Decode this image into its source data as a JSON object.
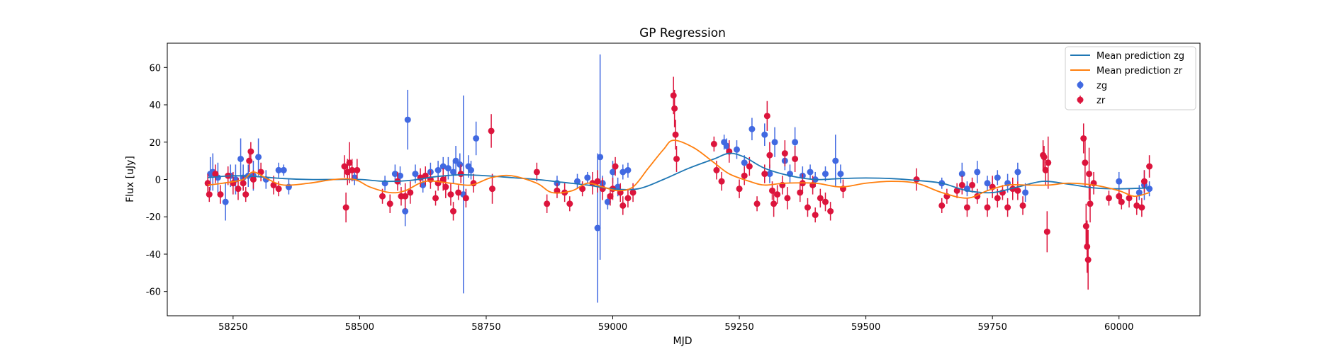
{
  "chart_data": {
    "type": "scatter",
    "title": "GP Regression",
    "xlabel": "MJD",
    "ylabel": "Flux [uJy]",
    "xlim": [
      58120,
      60160
    ],
    "ylim": [
      -73,
      73
    ],
    "xticks": [
      58250,
      58500,
      58750,
      59000,
      59250,
      59500,
      59750,
      60000
    ],
    "yticks": [
      -60,
      -40,
      -20,
      0,
      20,
      40,
      60
    ],
    "grid": false,
    "legend_position": "top-right",
    "colors": {
      "zg_points": "#4169e1",
      "zr_points": "#dc143c",
      "zg_line": "#1f77b4",
      "zr_line": "#ff7f0e"
    },
    "lines": [
      {
        "name": "Mean prediction zg",
        "x": [
          58200,
          58250,
          58300,
          58350,
          58400,
          58450,
          58500,
          58550,
          58600,
          58650,
          58700,
          58750,
          58800,
          58850,
          58900,
          58950,
          59000,
          59050,
          59100,
          59150,
          59200,
          59230,
          59260,
          59300,
          59350,
          59400,
          59450,
          59500,
          59550,
          59600,
          59650,
          59700,
          59750,
          59800,
          59850,
          59900,
          59950,
          60000,
          60060
        ],
        "y": [
          1,
          2,
          1.5,
          0.5,
          0,
          0,
          0,
          -1,
          -0.5,
          1.5,
          2.5,
          2,
          1,
          0,
          -1.5,
          -3,
          -5,
          -5,
          0,
          6,
          11,
          14,
          12,
          6,
          2,
          0,
          0.5,
          0.8,
          0.5,
          -0.5,
          -2,
          -6,
          -7,
          -4,
          -1,
          -2.5,
          -4.5,
          -5,
          -4.5
        ]
      },
      {
        "name": "Mean prediction zr",
        "x": [
          58200,
          58230,
          58270,
          58290,
          58320,
          58350,
          58400,
          58450,
          58490,
          58520,
          58560,
          58590,
          58630,
          58680,
          58720,
          58760,
          58800,
          58850,
          58880,
          58920,
          58950,
          58980,
          59010,
          59040,
          59070,
          59100,
          59120,
          59160,
          59200,
          59230,
          59270,
          59300,
          59340,
          59400,
          59450,
          59500,
          59550,
          59600,
          59650,
          59700,
          59740,
          59780,
          59820,
          59860,
          59900,
          59950,
          60000,
          60030,
          60060
        ],
        "y": [
          -3,
          -2,
          0,
          4,
          0,
          -3,
          -2,
          0,
          0,
          -4,
          -7,
          -6,
          -1,
          -2,
          -3,
          1,
          2,
          -2,
          -7,
          -6,
          -2,
          -4,
          -6,
          -4,
          6,
          16,
          21,
          17,
          9,
          3,
          -1,
          -3,
          -2,
          -2,
          -4,
          -2,
          -1,
          -2,
          -7,
          -10,
          -6,
          -3,
          -3,
          -3,
          -2,
          -3,
          -6,
          -9,
          -7
        ]
      }
    ],
    "series": [
      {
        "name": "zg",
        "points": [
          [
            58205,
            3,
            9
          ],
          [
            58210,
            4,
            10
          ],
          [
            58220,
            1,
            8
          ],
          [
            58235,
            -12,
            10
          ],
          [
            58245,
            2,
            6
          ],
          [
            58255,
            0,
            8
          ],
          [
            58265,
            11,
            11
          ],
          [
            58270,
            1,
            7
          ],
          [
            58280,
            2,
            6
          ],
          [
            58290,
            2,
            8
          ],
          [
            58300,
            12,
            10
          ],
          [
            58315,
            0,
            5
          ],
          [
            58340,
            5,
            4
          ],
          [
            58350,
            5,
            3
          ],
          [
            58360,
            -4,
            4
          ],
          [
            58490,
            1,
            4
          ],
          [
            58550,
            -2,
            4
          ],
          [
            58570,
            3,
            5
          ],
          [
            58580,
            2,
            5
          ],
          [
            58590,
            -17,
            8
          ],
          [
            58595,
            32,
            16
          ],
          [
            58610,
            3,
            5
          ],
          [
            58625,
            -3,
            4
          ],
          [
            58640,
            4,
            5
          ],
          [
            58655,
            5,
            5
          ],
          [
            58665,
            7,
            5
          ],
          [
            58675,
            6,
            6
          ],
          [
            58685,
            4,
            6
          ],
          [
            58690,
            10,
            8
          ],
          [
            58698,
            8,
            6
          ],
          [
            58705,
            -8,
            53
          ],
          [
            58715,
            7,
            6
          ],
          [
            58720,
            5,
            5
          ],
          [
            58730,
            22,
            9
          ],
          [
            58890,
            -2,
            4
          ],
          [
            58930,
            -1,
            4
          ],
          [
            58950,
            1,
            3
          ],
          [
            58970,
            -26,
            40
          ],
          [
            58975,
            12,
            55
          ],
          [
            58980,
            -2,
            4
          ],
          [
            58990,
            -12,
            4
          ],
          [
            59000,
            4,
            6
          ],
          [
            59010,
            -4,
            5
          ],
          [
            59020,
            4,
            4
          ],
          [
            59030,
            5,
            4
          ],
          [
            59220,
            20,
            4
          ],
          [
            59225,
            18,
            4
          ],
          [
            59245,
            16,
            5
          ],
          [
            59260,
            9,
            4
          ],
          [
            59275,
            27,
            6
          ],
          [
            59300,
            24,
            6
          ],
          [
            59310,
            3,
            5
          ],
          [
            59320,
            20,
            8
          ],
          [
            59340,
            10,
            5
          ],
          [
            59350,
            3,
            5
          ],
          [
            59360,
            20,
            8
          ],
          [
            59375,
            2,
            5
          ],
          [
            59390,
            4,
            4
          ],
          [
            59400,
            0,
            4
          ],
          [
            59420,
            3,
            4
          ],
          [
            59440,
            10,
            14
          ],
          [
            59450,
            3,
            5
          ],
          [
            59650,
            -2,
            3
          ],
          [
            59690,
            3,
            6
          ],
          [
            59700,
            -5,
            4
          ],
          [
            59720,
            4,
            6
          ],
          [
            59740,
            -2,
            4
          ],
          [
            59760,
            1,
            4
          ],
          [
            59780,
            -2,
            5
          ],
          [
            59800,
            4,
            5
          ],
          [
            59815,
            -7,
            5
          ],
          [
            60000,
            -1,
            5
          ],
          [
            60040,
            -7,
            4
          ],
          [
            60050,
            -3,
            8
          ],
          [
            60060,
            -5,
            4
          ]
        ]
      },
      {
        "name": "zr",
        "points": [
          [
            58200,
            -2,
            5
          ],
          [
            58203,
            -8,
            4
          ],
          [
            58215,
            3,
            5
          ],
          [
            58225,
            -8,
            5
          ],
          [
            58240,
            2,
            5
          ],
          [
            58250,
            -2,
            6
          ],
          [
            58260,
            -5,
            6
          ],
          [
            58270,
            -2,
            4
          ],
          [
            58275,
            -8,
            4
          ],
          [
            58282,
            10,
            6
          ],
          [
            58285,
            15,
            5
          ],
          [
            58290,
            0,
            5
          ],
          [
            58305,
            4,
            5
          ],
          [
            58330,
            -3,
            5
          ],
          [
            58340,
            -5,
            4
          ],
          [
            58470,
            7,
            6
          ],
          [
            58473,
            -15,
            8
          ],
          [
            58476,
            4,
            7
          ],
          [
            58480,
            9,
            11
          ],
          [
            58485,
            5,
            6
          ],
          [
            58495,
            5,
            6
          ],
          [
            58545,
            -9,
            4
          ],
          [
            58560,
            -13,
            5
          ],
          [
            58575,
            -1,
            5
          ],
          [
            58582,
            -9,
            5
          ],
          [
            58590,
            -9,
            7
          ],
          [
            58600,
            -7,
            6
          ],
          [
            58620,
            1,
            5
          ],
          [
            58630,
            2,
            5
          ],
          [
            58640,
            0,
            5
          ],
          [
            58650,
            -10,
            4
          ],
          [
            58655,
            -2,
            4
          ],
          [
            58665,
            0,
            6
          ],
          [
            58670,
            -4,
            6
          ],
          [
            58680,
            -8,
            6
          ],
          [
            58685,
            -17,
            5
          ],
          [
            58695,
            -7,
            4
          ],
          [
            58700,
            3,
            5
          ],
          [
            58710,
            -10,
            5
          ],
          [
            58725,
            -2,
            5
          ],
          [
            58760,
            26,
            9
          ],
          [
            58762,
            -5,
            8
          ],
          [
            58850,
            4,
            5
          ],
          [
            58870,
            -13,
            5
          ],
          [
            58890,
            -6,
            4
          ],
          [
            58905,
            -7,
            5
          ],
          [
            58915,
            -13,
            4
          ],
          [
            58940,
            -5,
            4
          ],
          [
            58960,
            -2,
            6
          ],
          [
            58970,
            -1,
            6
          ],
          [
            58980,
            -5,
            6
          ],
          [
            58995,
            -9,
            5
          ],
          [
            59000,
            -5,
            6
          ],
          [
            59005,
            7,
            5
          ],
          [
            59015,
            -7,
            5
          ],
          [
            59020,
            -14,
            5
          ],
          [
            59030,
            -10,
            5
          ],
          [
            59040,
            -7,
            5
          ],
          [
            59120,
            45,
            10
          ],
          [
            59122,
            38,
            10
          ],
          [
            59124,
            24,
            8
          ],
          [
            59126,
            11,
            7
          ],
          [
            59200,
            19,
            4
          ],
          [
            59205,
            5,
            5
          ],
          [
            59215,
            -1,
            5
          ],
          [
            59230,
            15,
            6
          ],
          [
            59250,
            -5,
            5
          ],
          [
            59260,
            2,
            5
          ],
          [
            59270,
            7,
            5
          ],
          [
            59285,
            -13,
            4
          ],
          [
            59300,
            3,
            5
          ],
          [
            59305,
            34,
            8
          ],
          [
            59310,
            13,
            7
          ],
          [
            59315,
            -6,
            5
          ],
          [
            59318,
            -13,
            7
          ],
          [
            59325,
            -8,
            5
          ],
          [
            59335,
            -3,
            5
          ],
          [
            59340,
            14,
            7
          ],
          [
            59345,
            -10,
            6
          ],
          [
            59360,
            11,
            7
          ],
          [
            59370,
            -7,
            5
          ],
          [
            59375,
            -2,
            5
          ],
          [
            59385,
            -15,
            5
          ],
          [
            59395,
            -3,
            5
          ],
          [
            59400,
            -19,
            4
          ],
          [
            59410,
            -10,
            5
          ],
          [
            59420,
            -12,
            5
          ],
          [
            59430,
            -17,
            5
          ],
          [
            59455,
            -5,
            5
          ],
          [
            59600,
            0,
            6
          ],
          [
            59650,
            -14,
            4
          ],
          [
            59660,
            -9,
            4
          ],
          [
            59680,
            -6,
            4
          ],
          [
            59690,
            -3,
            5
          ],
          [
            59700,
            -15,
            5
          ],
          [
            59710,
            -3,
            4
          ],
          [
            59720,
            -9,
            4
          ],
          [
            59740,
            -15,
            5
          ],
          [
            59750,
            -4,
            6
          ],
          [
            59760,
            -10,
            5
          ],
          [
            59770,
            -7,
            4
          ],
          [
            59780,
            -15,
            5
          ],
          [
            59790,
            -5,
            6
          ],
          [
            59800,
            -6,
            5
          ],
          [
            59810,
            -14,
            5
          ],
          [
            59850,
            13,
            8
          ],
          [
            59852,
            12,
            6
          ],
          [
            59855,
            5,
            8
          ],
          [
            59858,
            -28,
            11
          ],
          [
            59860,
            9,
            14
          ],
          [
            59930,
            22,
            8
          ],
          [
            59933,
            9,
            13
          ],
          [
            59935,
            -25,
            12
          ],
          [
            59937,
            -36,
            14
          ],
          [
            59939,
            -43,
            16
          ],
          [
            59941,
            3,
            14
          ],
          [
            59943,
            -13,
            10
          ],
          [
            59950,
            -2,
            6
          ],
          [
            59980,
            -10,
            4
          ],
          [
            60000,
            -9,
            4
          ],
          [
            60005,
            -12,
            4
          ],
          [
            60020,
            -10,
            5
          ],
          [
            60035,
            -14,
            5
          ],
          [
            60045,
            -15,
            5
          ],
          [
            60050,
            -1,
            6
          ],
          [
            60060,
            7,
            6
          ]
        ]
      }
    ]
  }
}
